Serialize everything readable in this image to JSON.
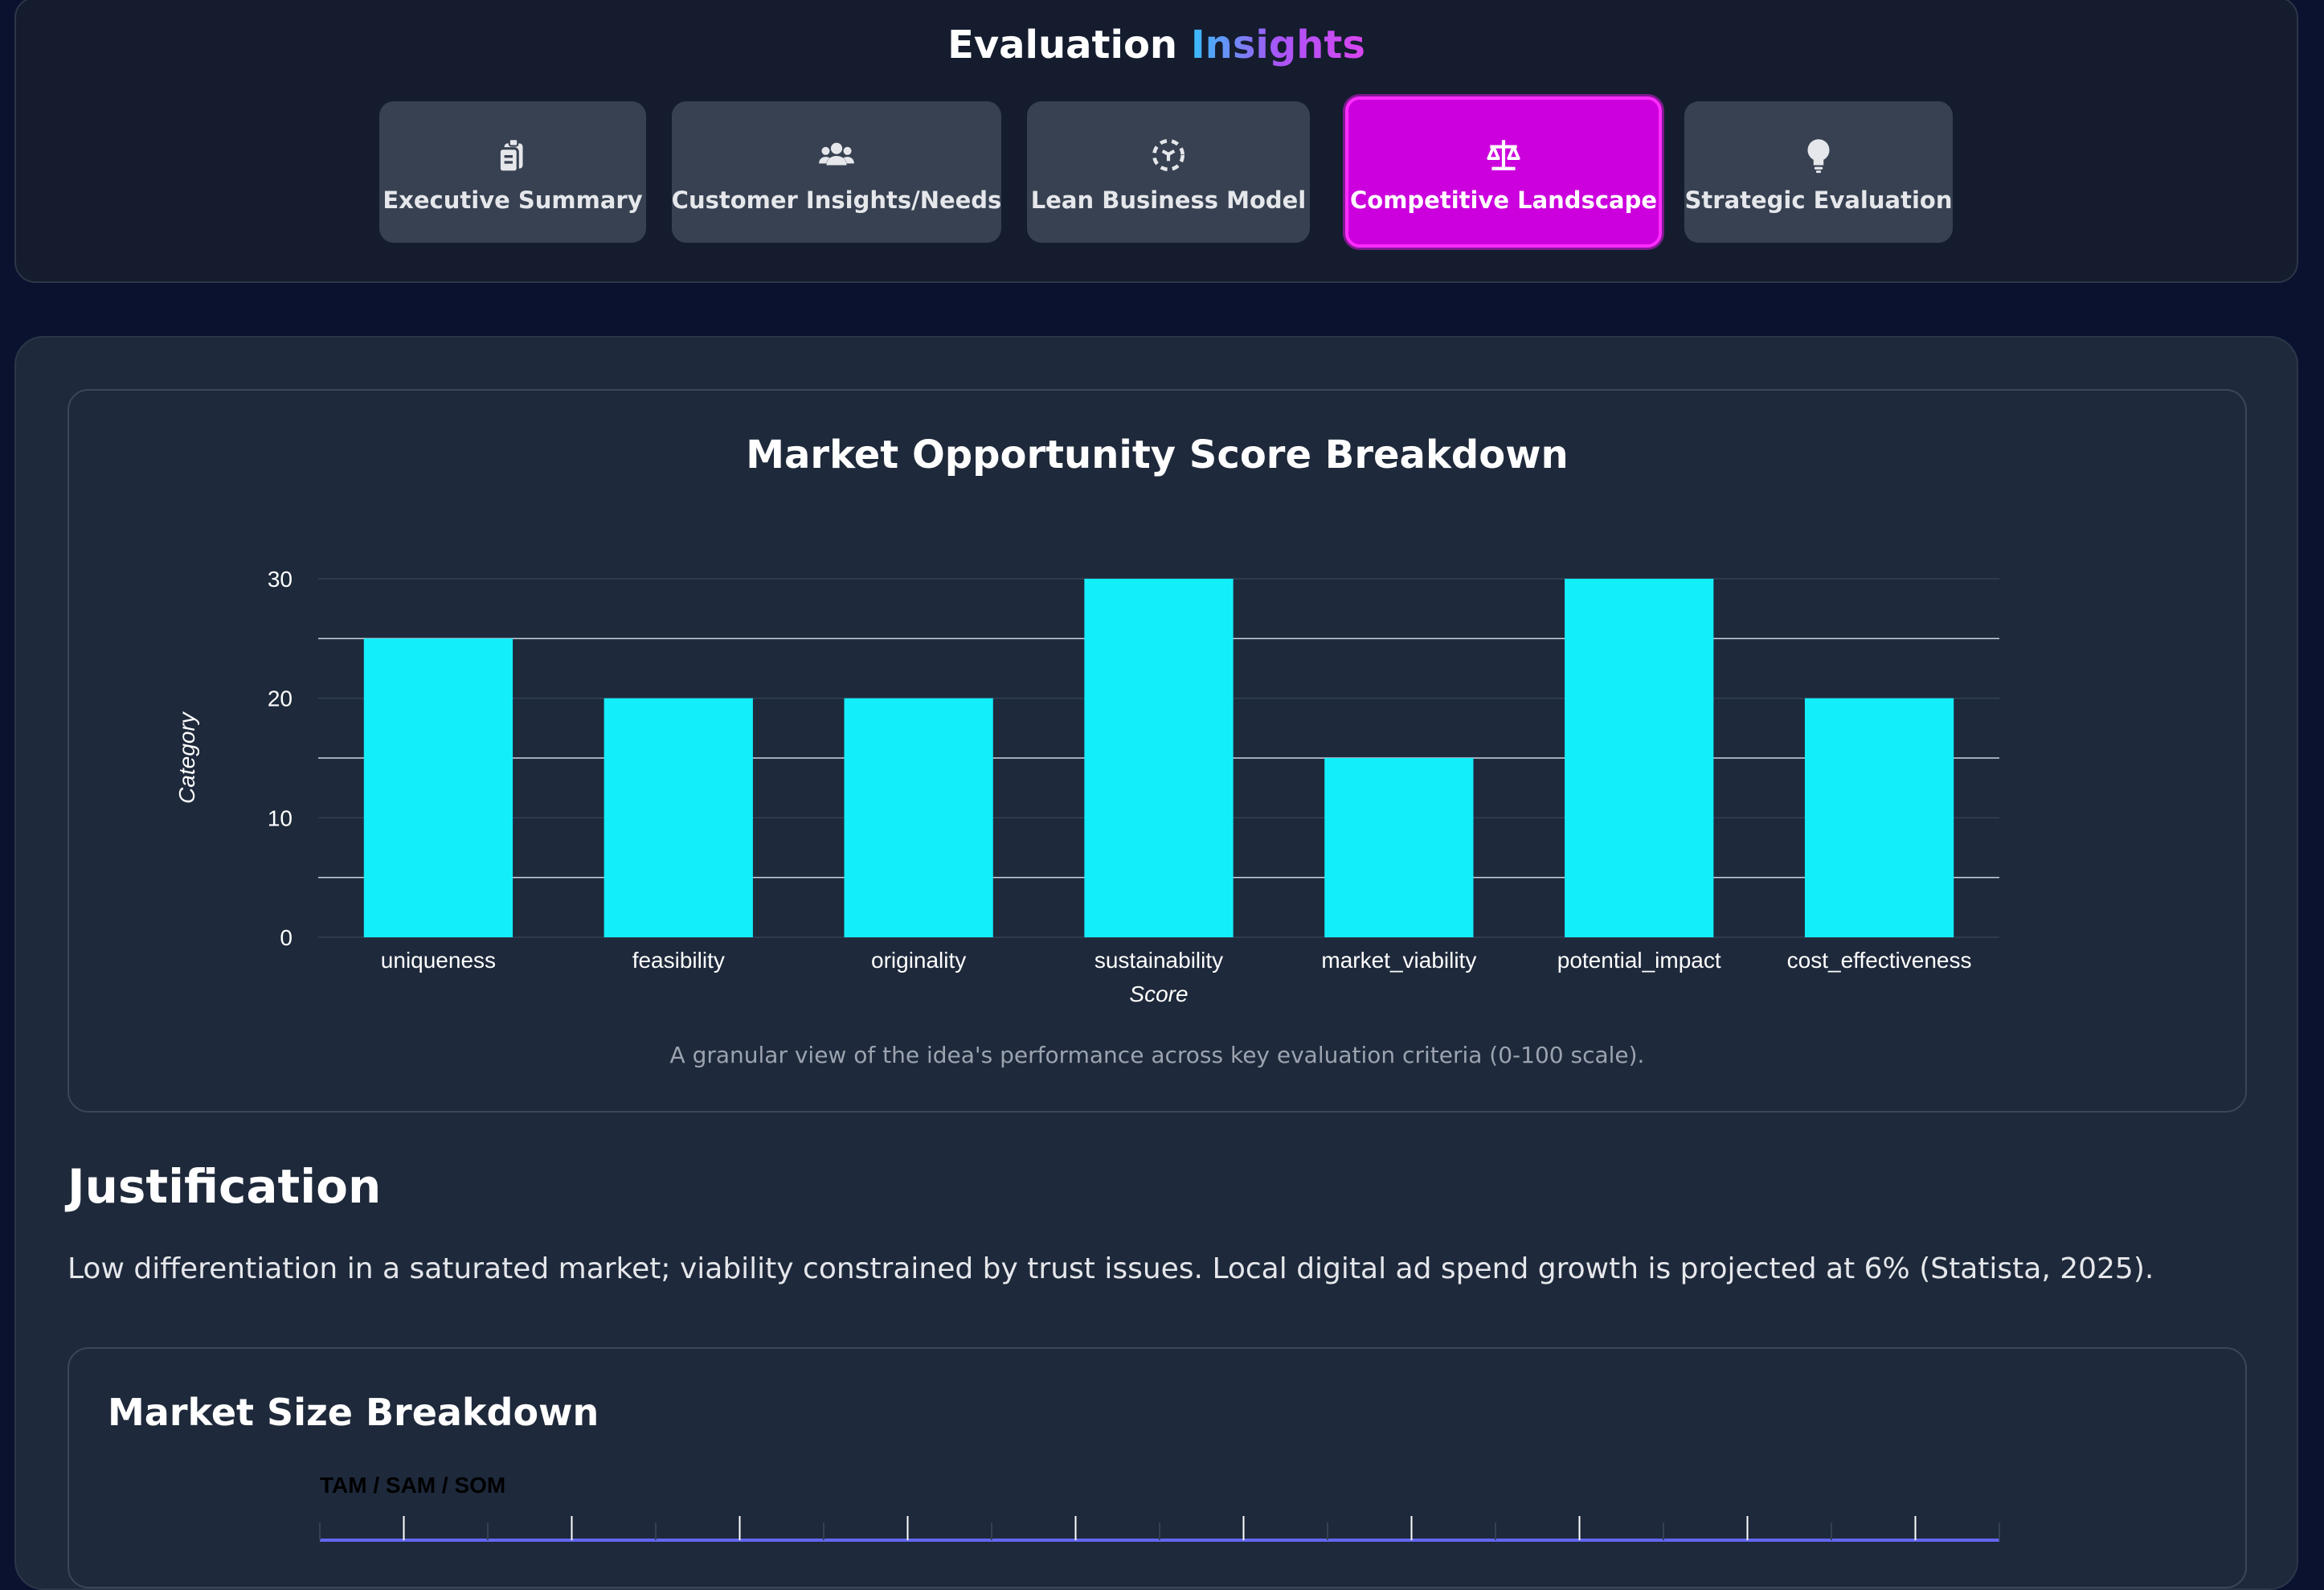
{
  "header": {
    "title_main": "Evaluation",
    "title_accent": "Insights",
    "tabs": [
      {
        "label": "Executive Summary",
        "icon": "clipboard-icon",
        "active": false
      },
      {
        "label": "Customer Insights/Needs",
        "icon": "users-icon",
        "active": false
      },
      {
        "label": "Lean Business Model",
        "icon": "model-icon",
        "active": false
      },
      {
        "label": "Competitive Landscape",
        "icon": "scale-icon",
        "active": true
      },
      {
        "label": "Strategic Evaluation",
        "icon": "lightbulb-icon",
        "active": false
      }
    ]
  },
  "colors": {
    "background": "#0b1230",
    "panel": "#1e293b",
    "active_tab": "#cc00dd",
    "bar": "#12eefa",
    "title_gradient": [
      "#38bdf8",
      "#d946ef"
    ]
  },
  "chart_data": {
    "type": "bar",
    "title": "Market Opportunity Score Breakdown",
    "xlabel": "Score",
    "ylabel": "Category",
    "categories": [
      "uniqueness",
      "feasibility",
      "originality",
      "sustainability",
      "market_viability",
      "potential_impact",
      "cost_effectiveness"
    ],
    "values": [
      25,
      20,
      20,
      30,
      15,
      30,
      20
    ],
    "ylim": [
      0,
      30
    ],
    "yticks": [
      "0",
      "10",
      "20",
      "30"
    ],
    "grid": true,
    "caption": "A granular view of the idea's performance across key evaluation criteria (0-100 scale)."
  },
  "justification": {
    "heading": "Justification",
    "text": "Low differentiation in a saturated market; viability constrained by trust issues. Local digital ad spend growth is projected at 6% (Statista, 2025)."
  },
  "market_size": {
    "heading": "Market Size Breakdown",
    "subtitle": "TAM / SAM / SOM"
  }
}
